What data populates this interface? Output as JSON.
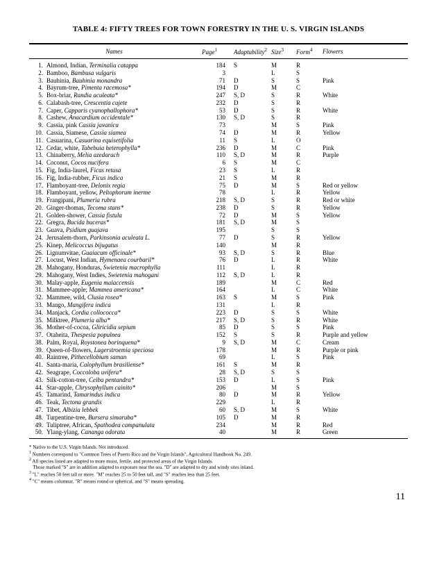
{
  "title": "TABLE 4: FIFTY TREES FOR TOWN FORESTRY IN THE U. S. VIRGIN ISLANDS",
  "headers": {
    "names": "Names",
    "page": "Page",
    "adaptability": "Adaptability",
    "size": "Size",
    "form": "Form",
    "flowers": "Flowers",
    "sup_page": "1",
    "sup_adapt": "2",
    "sup_size": "3",
    "sup_form": "4"
  },
  "rows": [
    {
      "n": "1.",
      "common": "Almond, Indian, ",
      "sci": "Terminalia catappa",
      "page": "184",
      "adapt": "S",
      "size": "M",
      "form": "R",
      "flowers": ""
    },
    {
      "n": "2.",
      "common": "Bamboo, ",
      "sci": "Bambusa vulgaris",
      "page": "3",
      "adapt": "",
      "size": "L",
      "form": "S",
      "flowers": ""
    },
    {
      "n": "3.",
      "common": "Bauhinia, ",
      "sci": "Bauhinia monandra",
      "page": "71",
      "adapt": "D",
      "size": "S",
      "form": "S",
      "flowers": "Pink"
    },
    {
      "n": "4.",
      "common": "Bayrum-tree, ",
      "sci": "Pimenta racemosa*",
      "page": "194",
      "adapt": "D",
      "size": "M",
      "form": "C",
      "flowers": ""
    },
    {
      "n": "5.",
      "common": "Box-briar, ",
      "sci": "Randia aculeata*",
      "page": "247",
      "adapt": "S, D",
      "size": "S",
      "form": "R",
      "flowers": "White"
    },
    {
      "n": "6.",
      "common": "Calabash-tree, ",
      "sci": "Crescentia cujete",
      "page": "232",
      "adapt": "D",
      "size": "S",
      "form": "R",
      "flowers": ""
    },
    {
      "n": "7.",
      "common": "Caper, ",
      "sci": "Capparis cyanophallophora*",
      "page": "53",
      "adapt": "D",
      "size": "S",
      "form": "R",
      "flowers": "White"
    },
    {
      "n": "8.",
      "common": "Cashew, ",
      "sci": "Anacardium occidentale*",
      "page": "130",
      "adapt": "S, D",
      "size": "S",
      "form": "R",
      "flowers": ""
    },
    {
      "n": "9.",
      "common": "Cassia, pink ",
      "sci": "Cassia javanica",
      "page": "73",
      "adapt": "",
      "size": "M",
      "form": "S",
      "flowers": "Pink"
    },
    {
      "n": "10.",
      "common": "Cassia, Siamese, ",
      "sci": "Cassia siamea",
      "page": "74",
      "adapt": "D",
      "size": "M",
      "form": "R",
      "flowers": "Yellow"
    },
    {
      "n": "11.",
      "common": "Casuarina, ",
      "sci": "Casuarina equisetifolia",
      "page": "11",
      "adapt": "S",
      "size": "L",
      "form": "O",
      "flowers": ""
    },
    {
      "n": "12.",
      "common": "Cedar, white, ",
      "sci": "Tabebuia heterophylla*",
      "page": "236",
      "adapt": "D",
      "size": "M",
      "form": "C",
      "flowers": "Pink"
    },
    {
      "n": "13.",
      "common": "Chinaberry, ",
      "sci": "Melia azedarach",
      "page": "110",
      "adapt": "S, D",
      "size": "M",
      "form": "R",
      "flowers": "Purple"
    },
    {
      "n": "14.",
      "common": "Coconut, ",
      "sci": "Cocos nucifera",
      "page": "6",
      "adapt": "S",
      "size": "M",
      "form": "C",
      "flowers": ""
    },
    {
      "n": "15.",
      "common": "Fig, India-laurel, ",
      "sci": "Ficus retusa",
      "page": "23",
      "adapt": "S",
      "size": "L",
      "form": "R",
      "flowers": ""
    },
    {
      "n": "16.",
      "common": "Fig, India-rubber, ",
      "sci": "Ficus indica",
      "page": "21",
      "adapt": "S",
      "size": "M",
      "form": "R",
      "flowers": ""
    },
    {
      "n": "17.",
      "common": "Flamboyant-tree, ",
      "sci": "Delonix regia",
      "page": "75",
      "adapt": "D",
      "size": "M",
      "form": "S",
      "flowers": "Red or yellow"
    },
    {
      "n": "18.",
      "common": "Flamboyant, yellow, ",
      "sci": "Peltophorum inerme",
      "page": "78",
      "adapt": "",
      "size": "L",
      "form": "R",
      "flowers": "Yellow"
    },
    {
      "n": "19.",
      "common": "Frangipani, ",
      "sci": "Plumeria rubra",
      "page": "218",
      "adapt": "S, D",
      "size": "S",
      "form": "R",
      "flowers": "Red or white"
    },
    {
      "n": "20.",
      "common": "Ginger-thomas, ",
      "sci": "Tecoma stans*",
      "page": "238",
      "adapt": "D",
      "size": "S",
      "form": "R",
      "flowers": "Yellow"
    },
    {
      "n": "21.",
      "common": "Golden-shower, ",
      "sci": "Cassia fistula",
      "page": "72",
      "adapt": "D",
      "size": "M",
      "form": "S",
      "flowers": "Yellow"
    },
    {
      "n": "22.",
      "common": "Gregra, ",
      "sci": "Bucida buceras*",
      "page": "181",
      "adapt": "S, D",
      "size": "M",
      "form": "S",
      "flowers": ""
    },
    {
      "n": "23.",
      "common": "Guava, ",
      "sci": "Psidium guajava",
      "page": "195",
      "adapt": "",
      "size": "S",
      "form": "S",
      "flowers": ""
    },
    {
      "n": "24.",
      "common": "Jerusalem-thorn, ",
      "sci": "Parkinsonia aculeata L.",
      "page": "77",
      "adapt": "D",
      "size": "S",
      "form": "R",
      "flowers": "Yellow"
    },
    {
      "n": "25.",
      "common": "Kinep, ",
      "sci": "Melicoccus bijugatus",
      "page": "140",
      "adapt": "",
      "size": "M",
      "form": "R",
      "flowers": ""
    },
    {
      "n": "26.",
      "common": "Lignumvitae, ",
      "sci": "Guaiacum officinale*",
      "page": "93",
      "adapt": "S, D",
      "size": "S",
      "form": "R",
      "flowers": "Blue"
    },
    {
      "n": "27.",
      "common": "Locust, West Indian, ",
      "sci": "Hymenaea courbaril*",
      "page": "76",
      "adapt": "D",
      "size": "L",
      "form": "R",
      "flowers": "White"
    },
    {
      "n": "28.",
      "common": "Mahogany, Honduras, ",
      "sci": "Swietenia macrophylla",
      "page": "111",
      "adapt": "",
      "size": "L",
      "form": "R",
      "flowers": ""
    },
    {
      "n": "29.",
      "common": "Mahogany, West Indies, ",
      "sci": "Swietenia mahogani",
      "page": "112",
      "adapt": "S, D",
      "size": "L",
      "form": "R",
      "flowers": ""
    },
    {
      "n": "30.",
      "common": "Malay-apple, ",
      "sci": "Eugenia malaccensis",
      "page": "189",
      "adapt": "",
      "size": "M",
      "form": "C",
      "flowers": "Red"
    },
    {
      "n": "31.",
      "common": "Mammee-apple; ",
      "sci": "Mammea americana*",
      "page": "164",
      "adapt": "",
      "size": "L",
      "form": "C",
      "flowers": "White"
    },
    {
      "n": "32.",
      "common": "Mammee, wild, ",
      "sci": "Clusia rosea*",
      "page": "163",
      "adapt": "S",
      "size": "M",
      "form": "S",
      "flowers": "Pink"
    },
    {
      "n": "33.",
      "common": "Mango, ",
      "sci": "Mangifera indica",
      "page": "131",
      "adapt": "",
      "size": "L",
      "form": "R",
      "flowers": ""
    },
    {
      "n": "34.",
      "common": "Manjack, ",
      "sci": "Cordia collococca*",
      "page": "223",
      "adapt": "D",
      "size": "S",
      "form": "S",
      "flowers": "White"
    },
    {
      "n": "35.",
      "common": "Milktree, ",
      "sci": "Plumeria alba*",
      "page": "217",
      "adapt": "S, D",
      "size": "S",
      "form": "R",
      "flowers": "White"
    },
    {
      "n": "36.",
      "common": "Mother-of-cocoa, ",
      "sci": "Gliricidia sepium",
      "page": "85",
      "adapt": "D",
      "size": "S",
      "form": "S",
      "flowers": "Pink"
    },
    {
      "n": "37.",
      "common": "Otaheita, ",
      "sci": "Thespesia populnea",
      "page": "152",
      "adapt": "S",
      "size": "S",
      "form": "R",
      "flowers": "Purple and yellow"
    },
    {
      "n": "38.",
      "common": "Palm, Royal, ",
      "sci": "Roystonea borinquena*",
      "page": "9",
      "adapt": "S, D",
      "size": "M",
      "form": "C",
      "flowers": "Cream"
    },
    {
      "n": "39.",
      "common": "Queen-of-flowers, ",
      "sci": "Lagerstroemia speciosa",
      "page": "178",
      "adapt": "",
      "size": "M",
      "form": "R",
      "flowers": "Purple or pink"
    },
    {
      "n": "40.",
      "common": "Raintree, ",
      "sci": "Pithecellobium saman",
      "page": "69",
      "adapt": "",
      "size": "L",
      "form": "S",
      "flowers": "Pink"
    },
    {
      "n": "41.",
      "common": "Santa-maria, ",
      "sci": "Calophyllum brasiliense*",
      "page": "161",
      "adapt": "S",
      "size": "M",
      "form": "R",
      "flowers": ""
    },
    {
      "n": "42.",
      "common": "Seagrape, ",
      "sci": "Coccoloba uvifera*",
      "page": "28",
      "adapt": "S, D",
      "size": "S",
      "form": "S",
      "flowers": ""
    },
    {
      "n": "43.",
      "common": "Silk-cotton-tree, ",
      "sci": "Ceiba pentandra*",
      "page": "153",
      "adapt": "D",
      "size": "L",
      "form": "S",
      "flowers": "Pink"
    },
    {
      "n": "44.",
      "common": "Star-apple, ",
      "sci": "Chrysophyllum cainito*",
      "page": "206",
      "adapt": "",
      "size": "M",
      "form": "S",
      "flowers": ""
    },
    {
      "n": "45.",
      "common": "Tamarind, ",
      "sci": "Tamarindus indica",
      "page": "80",
      "adapt": "D",
      "size": "M",
      "form": "R",
      "flowers": "Yellow"
    },
    {
      "n": "46.",
      "common": "Teak, ",
      "sci": "Tectona grandis",
      "page": "229",
      "adapt": "",
      "size": "L",
      "form": "R",
      "flowers": ""
    },
    {
      "n": "47.",
      "common": "Tibet, ",
      "sci": "Albizia lebbek",
      "page": "60",
      "adapt": "S, D",
      "size": "M",
      "form": "S",
      "flowers": "White"
    },
    {
      "n": "48.",
      "common": "Turpentine-tree, ",
      "sci": "Bursera simaruba*",
      "page": "105",
      "adapt": "D",
      "size": "M",
      "form": "R",
      "flowers": ""
    },
    {
      "n": "49.",
      "common": "Tuliptree, African, ",
      "sci": "Spathodea campanulata",
      "page": "234",
      "adapt": "",
      "size": "M",
      "form": "R",
      "flowers": "Red"
    },
    {
      "n": "50.",
      "common": "Ylang-ylang, ",
      "sci": "Cananga odorata",
      "page": "40",
      "adapt": "",
      "size": "M",
      "form": "R",
      "flowers": "Green"
    }
  ],
  "footnotes": {
    "star": "* Native to the U.S. Virgin Islands. Not introduced.",
    "f1": "Numbers correspond to \"Common Trees of Puerto Rico and the Virgin Islands\", Agricultural Handbook No. 249.",
    "f2a": "All species listed are adapted to more moist, fertile, and protected areas of the Virgin Islands.",
    "f2b": "Those marked \"S\" are in addition adapted to exposure near the sea. \"D\" are adapted to dry and windy sites inland.",
    "f3": "\"L\" reaches 50 feet tall or more. \"M\" reaches 25 to 50 feet tall, and \"S\" reaches less than 25 feet.",
    "f4": "\"C\" means columnar, \"R\" means round or spherical, and \"S\" means spreading."
  },
  "pagenum": "11"
}
